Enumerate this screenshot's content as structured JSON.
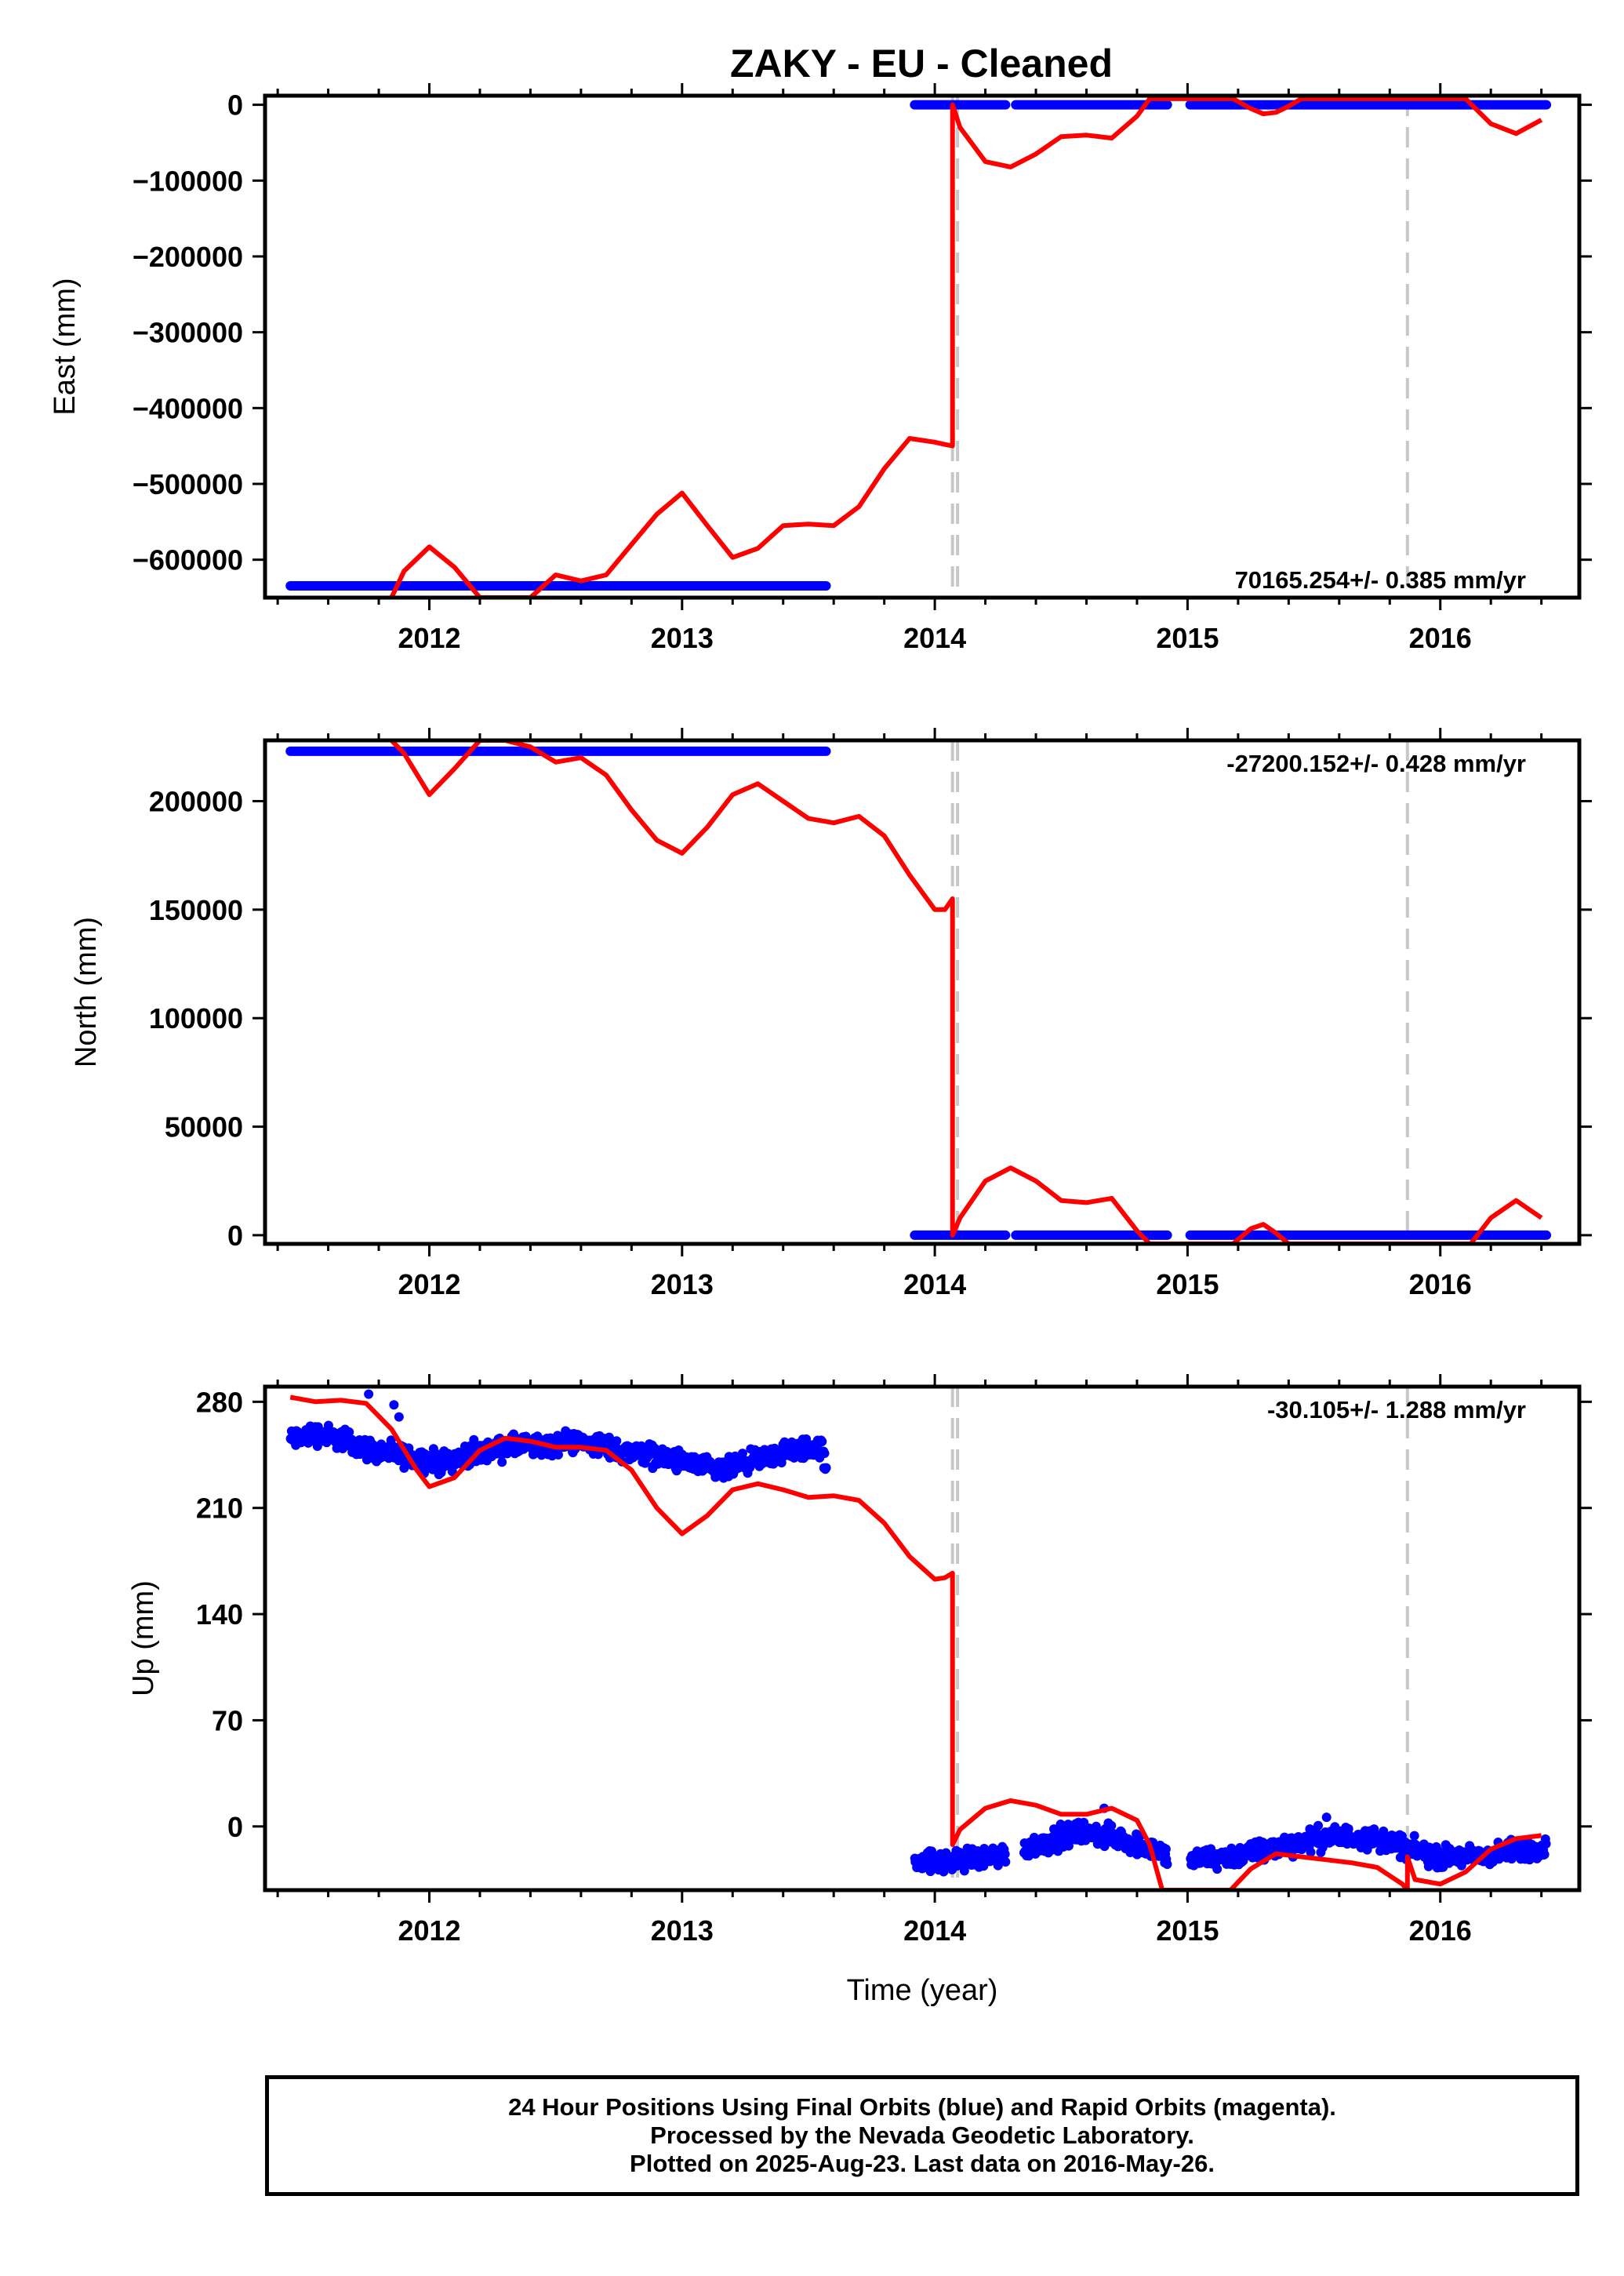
{
  "title": "ZAKY  - EU - Cleaned",
  "colors": {
    "data": "#0000ff",
    "model": "#ff0000",
    "offset": "#c8c8c8",
    "frame": "#000000"
  },
  "offset_epochs": [
    2014.07,
    2014.09,
    2015.87
  ],
  "footer": {
    "line1": "24 Hour Positions Using Final Orbits (blue) and Rapid Orbits (magenta).",
    "line2": "Processed by the Nevada Geodetic Laboratory.",
    "line3": "Plotted on 2025-Aug-23. Last data on 2016-May-26."
  },
  "chart_data": [
    {
      "type": "scatter",
      "panel": "east",
      "ylabel": "East (mm)",
      "xlabel": "",
      "rate_label": "70165.254+/- 0.385 mm/yr",
      "xlim": [
        2011.35,
        2016.55
      ],
      "ylim": [
        -650000,
        12000
      ],
      "x_ticks": [
        2012,
        2013,
        2014,
        2015,
        2016
      ],
      "y_ticks": [
        0,
        -100000,
        -200000,
        -300000,
        -400000,
        -500000,
        -600000
      ],
      "y_tick_labels": [
        "0",
        "−100000",
        "−200000",
        "−300000",
        "−400000",
        "−500000",
        "−600000"
      ],
      "data_segments": [
        {
          "x": [
            2011.45,
            2013.57
          ],
          "y": -634500
        },
        {
          "x": [
            2013.92,
            2014.28
          ],
          "y": 0
        },
        {
          "x": [
            2014.32,
            2014.92
          ],
          "y": 0
        },
        {
          "x": [
            2015.01,
            2016.42
          ],
          "y": 0
        }
      ],
      "model_x": [
        2011.85,
        2011.9,
        2012.0,
        2012.1,
        2012.2,
        2012.3,
        2012.4,
        2012.5,
        2012.6,
        2012.7,
        2012.8,
        2012.9,
        2013.0,
        2013.1,
        2013.2,
        2013.3,
        2013.4,
        2013.5,
        2013.6,
        2013.7,
        2013.8,
        2013.9,
        2014.0,
        2014.04,
        2014.07,
        2014.07,
        2014.1,
        2014.2,
        2014.3,
        2014.4,
        2014.5,
        2014.6,
        2014.7,
        2014.8,
        2014.85,
        2015.18,
        2015.25,
        2015.3,
        2015.35,
        2015.4,
        2015.45,
        2015.87,
        2016.1,
        2016.2,
        2016.3,
        2016.4
      ],
      "model_y": [
        -650000,
        -615000,
        -583000,
        -610000,
        -650000,
        -650000,
        -650000,
        -620000,
        -628000,
        -620000,
        -580000,
        -540000,
        -512000,
        -555000,
        -597000,
        -585000,
        -555000,
        -553000,
        -555000,
        -530000,
        -480000,
        -440000,
        -445000,
        -448000,
        -450000,
        0,
        -30000,
        -75000,
        -82000,
        -65000,
        -42000,
        -40000,
        -44000,
        -15000,
        8000,
        8000,
        -5000,
        -12000,
        -10000,
        -2000,
        8000,
        8000,
        8000,
        -25000,
        -38000,
        -20000
      ]
    },
    {
      "type": "scatter",
      "panel": "north",
      "ylabel": "North (mm)",
      "xlabel": "",
      "rate_label": "-27200.152+/- 0.428 mm/yr",
      "xlim": [
        2011.35,
        2016.55
      ],
      "ylim": [
        -4000,
        228000
      ],
      "x_ticks": [
        2012,
        2013,
        2014,
        2015,
        2016
      ],
      "y_ticks": [
        0,
        50000,
        100000,
        150000,
        200000
      ],
      "y_tick_labels": [
        "0",
        "50000",
        "100000",
        "150000",
        "200000"
      ],
      "data_segments": [
        {
          "x": [
            2011.45,
            2013.57
          ],
          "y": 223000
        },
        {
          "x": [
            2013.92,
            2014.28
          ],
          "y": 0
        },
        {
          "x": [
            2014.32,
            2014.92
          ],
          "y": 0
        },
        {
          "x": [
            2015.01,
            2016.42
          ],
          "y": 0
        }
      ],
      "model_x": [
        2011.85,
        2011.9,
        2012.0,
        2012.1,
        2012.2,
        2012.3,
        2012.4,
        2012.5,
        2012.6,
        2012.7,
        2012.8,
        2012.9,
        2013.0,
        2013.1,
        2013.2,
        2013.3,
        2013.4,
        2013.5,
        2013.6,
        2013.7,
        2013.8,
        2013.9,
        2014.0,
        2014.04,
        2014.07,
        2014.07,
        2014.1,
        2014.2,
        2014.3,
        2014.4,
        2014.5,
        2014.6,
        2014.7,
        2014.8,
        2014.85,
        2015.18,
        2015.25,
        2015.3,
        2015.35,
        2015.4,
        2016.12,
        2016.2,
        2016.3,
        2016.4
      ],
      "model_y": [
        228000,
        222000,
        203000,
        215000,
        228000,
        228000,
        225000,
        218000,
        220000,
        212000,
        196000,
        182000,
        176000,
        188000,
        203000,
        208000,
        200000,
        192000,
        190000,
        193000,
        184000,
        166000,
        150000,
        150000,
        155000,
        0,
        8000,
        25000,
        31000,
        25000,
        16000,
        15000,
        17000,
        2000,
        -4000,
        -4000,
        3000,
        5000,
        1000,
        -4000,
        -4000,
        8000,
        16000,
        8000
      ]
    },
    {
      "type": "scatter",
      "panel": "up",
      "ylabel": "Up (mm)",
      "xlabel": "Time (year)",
      "rate_label": "-30.105+/- 1.288 mm/yr",
      "xlim": [
        2011.35,
        2016.55
      ],
      "ylim": [
        -42,
        290
      ],
      "x_ticks": [
        2012,
        2013,
        2014,
        2015,
        2016
      ],
      "y_ticks": [
        0,
        70,
        140,
        210,
        280
      ],
      "y_tick_labels": [
        "0",
        "70",
        "140",
        "210",
        "280"
      ],
      "data_x": [
        2011.45,
        2011.55,
        2011.65,
        2011.75,
        2011.85,
        2011.95,
        2012.05,
        2012.15,
        2012.25,
        2012.35,
        2012.45,
        2012.55,
        2012.65,
        2012.75,
        2012.85,
        2012.95,
        2013.05,
        2013.15,
        2013.25,
        2013.35,
        2013.45,
        2013.55,
        2013.92,
        2014.0,
        2014.1,
        2014.2,
        2014.28,
        2014.35,
        2014.45,
        2014.55,
        2014.65,
        2014.75,
        2014.85,
        2014.92,
        2015.01,
        2015.1,
        2015.2,
        2015.3,
        2015.4,
        2015.5,
        2015.6,
        2015.7,
        2015.8,
        2015.9,
        2016.0,
        2016.1,
        2016.2,
        2016.3,
        2016.42
      ],
      "data_y": [
        255,
        259,
        256,
        249,
        245,
        243,
        240,
        245,
        248,
        251,
        250,
        254,
        252,
        248,
        246,
        242,
        238,
        234,
        239,
        244,
        248,
        250,
        -21,
        -24,
        -22,
        -20,
        -19,
        -14,
        -10,
        -4,
        -5,
        -9,
        -14,
        -20,
        -22,
        -21,
        -19,
        -16,
        -12,
        -8,
        -7,
        -7,
        -10,
        -16,
        -20,
        -20,
        -19,
        -16,
        -14
      ],
      "data_noise": 5,
      "outliers": [
        [
          2011.76,
          285
        ],
        [
          2011.86,
          278
        ],
        [
          2011.88,
          270
        ],
        [
          2014.67,
          12
        ],
        [
          2015.55,
          6
        ]
      ],
      "model_x": [
        2011.45,
        2011.55,
        2011.65,
        2011.75,
        2011.85,
        2011.95,
        2012.0,
        2012.1,
        2012.2,
        2012.3,
        2012.4,
        2012.5,
        2012.6,
        2012.7,
        2012.8,
        2012.9,
        2013.0,
        2013.1,
        2013.2,
        2013.3,
        2013.4,
        2013.5,
        2013.6,
        2013.7,
        2013.8,
        2013.9,
        2014.0,
        2014.04,
        2014.07,
        2014.07,
        2014.1,
        2014.2,
        2014.3,
        2014.4,
        2014.5,
        2014.6,
        2014.7,
        2014.8,
        2014.85,
        2014.9,
        2015.17,
        2015.25,
        2015.35,
        2015.45,
        2015.55,
        2015.65,
        2015.75,
        2015.85,
        2015.87,
        2015.87,
        2015.9,
        2016.0,
        2016.1,
        2016.2,
        2016.3,
        2016.4
      ],
      "model_y": [
        283,
        280,
        281,
        279,
        262,
        235,
        224,
        230,
        248,
        256,
        254,
        250,
        250,
        248,
        235,
        210,
        193,
        205,
        222,
        226,
        222,
        217,
        218,
        215,
        200,
        178,
        163,
        164,
        167,
        -12,
        -2,
        12,
        17,
        14,
        8,
        8,
        12,
        4,
        -12,
        -42,
        -42,
        -28,
        -18,
        -20,
        -22,
        -24,
        -27,
        -38,
        -42,
        -20,
        -35,
        -38,
        -30,
        -15,
        -8,
        -6
      ]
    }
  ]
}
